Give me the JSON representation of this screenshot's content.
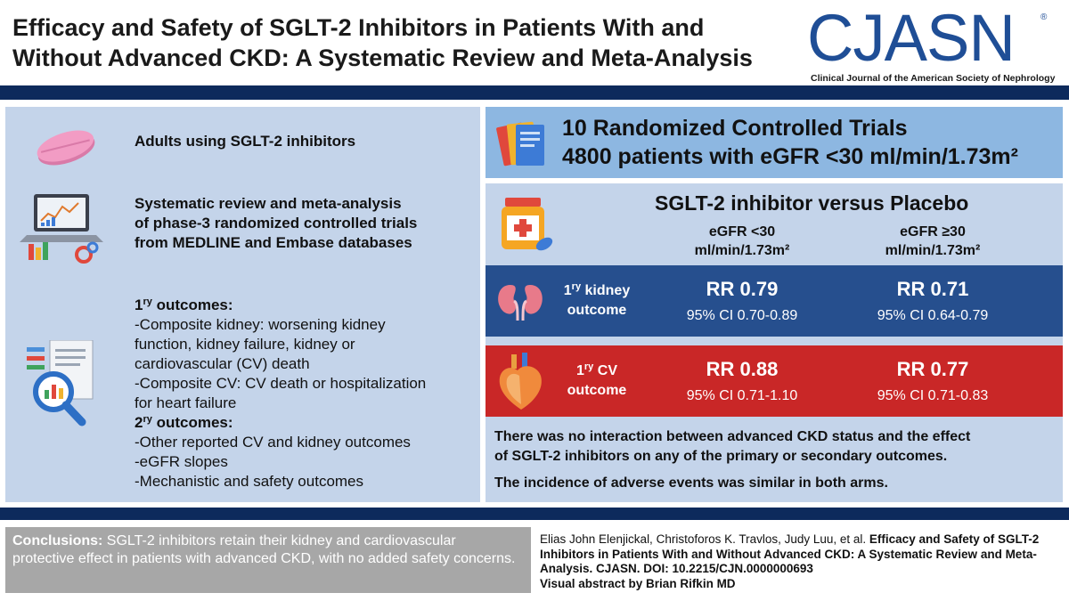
{
  "header": {
    "title_line1": "Efficacy and Safety of SGLT-2 Inhibitors in Patients With and",
    "title_line2": "Without Advanced CKD: A Systematic Review and Meta-Analysis",
    "logo_text": "CJASN",
    "logo_reg": "®",
    "logo_subtitle": "Clinical Journal of the American Society of Nephrology"
  },
  "left": {
    "population": "Adults using SGLT-2 inhibitors",
    "methods": [
      "Systematic review and meta-analysis",
      "of phase-3 randomized controlled trials",
      "from MEDLINE and Embase databases"
    ],
    "primary_heading_pre": "1",
    "primary_heading_sup": "ry",
    "primary_heading_post": " outcomes:",
    "primary_items": [
      "-Composite kidney: worsening kidney",
      "function, kidney failure, kidney or",
      "cardiovascular (CV) death",
      "-Composite CV: CV death or hospitalization",
      "for heart failure"
    ],
    "secondary_heading_pre": "2",
    "secondary_heading_sup": "ry",
    "secondary_heading_post": " outcomes:",
    "secondary_items": [
      "-Other reported CV and kidney outcomes",
      "-eGFR slopes",
      "-Mechanistic and safety outcomes"
    ]
  },
  "trials": {
    "line1": "10 Randomized Controlled Trials",
    "line2": "4800 patients with eGFR <30 ml/min/1.73m²"
  },
  "comparison": {
    "title": "SGLT-2 inhibitor versus Placebo",
    "col1_line1": "eGFR <30",
    "col1_line2": "ml/min/1.73m²",
    "col2_line1": "eGFR ≥30",
    "col2_line2": "ml/min/1.73m²",
    "kidney": {
      "label_pre": "1",
      "label_sup": "ry",
      "label_post": " kidney",
      "label_line2": "outcome",
      "rr1": "RR 0.79",
      "ci1": "95% CI 0.70-0.89",
      "rr2": "RR 0.71",
      "ci2": "95% CI 0.64-0.79"
    },
    "cv": {
      "label_pre": "1",
      "label_sup": "ry",
      "label_post": " CV",
      "label_line2": "outcome",
      "rr1": "RR 0.88",
      "ci1": "95% CI 0.71-1.10",
      "rr2": "RR 0.77",
      "ci2": "95% CI 0.71-0.83"
    },
    "summary1_line1": "There was no interaction between advanced CKD status and the effect",
    "summary1_line2": "of SGLT-2 inhibitors on any of the primary or secondary outcomes.",
    "summary2": "The incidence of adverse events was similar in both arms."
  },
  "footer": {
    "conclusions_heading": "Conclusions:",
    "conclusions_text": " SGLT-2 inhibitors retain their kidney and cardiovascular protective effect in patients with advanced CKD, with no added safety concerns.",
    "citation_authors": "Elias John Elenjickal, Christoforos K. Travlos, Judy Luu, et al. ",
    "citation_title": "Efficacy and Safety of SGLT-2 Inhibitors in Patients With and Without Advanced CKD: A Systematic Review and Meta-Analysis.",
    "citation_journal": " CJASN. DOI: 10.2215/CJN.0000000693",
    "credit": "Visual abstract by Brian Rifkin MD"
  },
  "colors": {
    "navy": "#0d2a5c",
    "light_blue_panel": "#c4d4ea",
    "trials_blue": "#8db7e1",
    "kidney_row": "#264f8e",
    "cv_row": "#c92727",
    "conclusion_gray": "#a7a7a7",
    "logo_blue": "#1f4e96"
  }
}
